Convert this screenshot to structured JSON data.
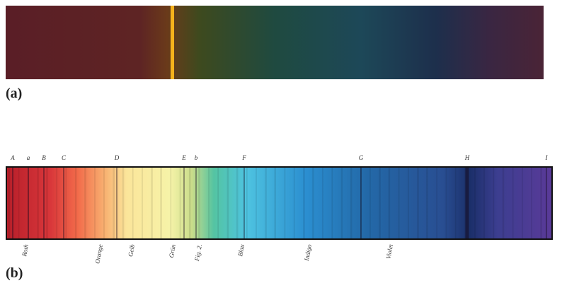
{
  "panel_a": {
    "label": "(a)"
  },
  "panel_b": {
    "label": "(b)",
    "line_letters": [
      "A",
      "a",
      "B",
      "C",
      "D",
      "E",
      "b",
      "F",
      "G",
      "H",
      "I"
    ],
    "color_names": [
      "Roth",
      "Orange",
      "Gelb",
      "Grün",
      "Fig. 2.",
      "Blau",
      "Indigo",
      "Violet"
    ]
  }
}
